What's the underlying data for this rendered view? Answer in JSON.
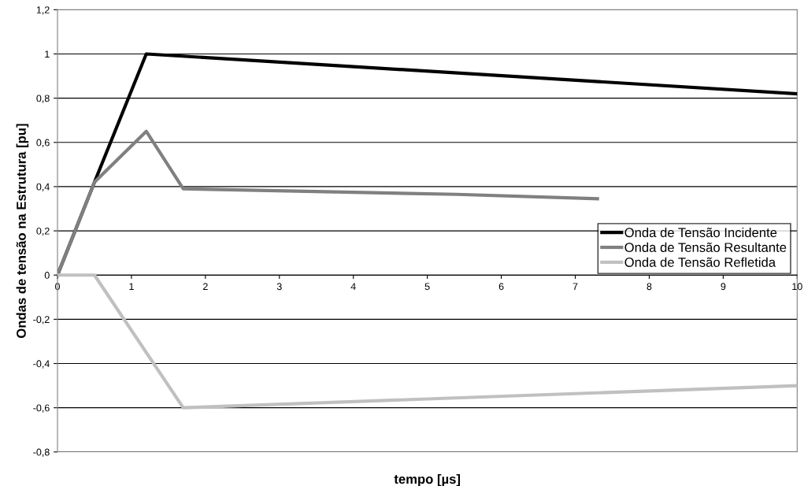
{
  "chart_data": {
    "type": "line",
    "xlabel": "tempo [µs]",
    "ylabel": "Ondas de tensão na Estrutura [pu]",
    "series": [
      {
        "name": "Onda de Tensão Incidente",
        "color": "#000000",
        "x": [
          0,
          0.5,
          1.2,
          10
        ],
        "values": [
          0,
          0.42,
          1.0,
          0.82
        ]
      },
      {
        "name": "Onda de Tensão Resultante",
        "color": "#808080",
        "x": [
          0,
          0.5,
          1.2,
          1.7,
          5.4,
          7.3
        ],
        "values": [
          0,
          0.42,
          0.65,
          0.39,
          0.365,
          0.345
        ]
      },
      {
        "name": "Onda de Tensão Refletida",
        "color": "#c0c0c0",
        "x": [
          0,
          0.5,
          1.7,
          10
        ],
        "values": [
          0,
          0,
          -0.6,
          -0.5
        ]
      }
    ],
    "xlim": [
      0,
      10
    ],
    "xticks": [
      0,
      1,
      2,
      3,
      4,
      5,
      6,
      7,
      8,
      9,
      10
    ],
    "ylim": [
      -0.8,
      1.2
    ],
    "yticks": [
      {
        "value": -0.8,
        "label": "-0,8"
      },
      {
        "value": -0.6,
        "label": "-0,6"
      },
      {
        "value": -0.4,
        "label": "-0,4"
      },
      {
        "value": -0.2,
        "label": "-0,2"
      },
      0,
      {
        "value": 0.2,
        "label": "0,2"
      },
      {
        "value": 0.4,
        "label": "0,4"
      },
      {
        "value": 0.6,
        "label": "0,6"
      },
      {
        "value": 0.8,
        "label": "0,8"
      },
      1,
      {
        "value": 1.2,
        "label": "1,2"
      }
    ],
    "grid": "y",
    "legend": "right",
    "marker": "none",
    "line_style": "solid"
  }
}
